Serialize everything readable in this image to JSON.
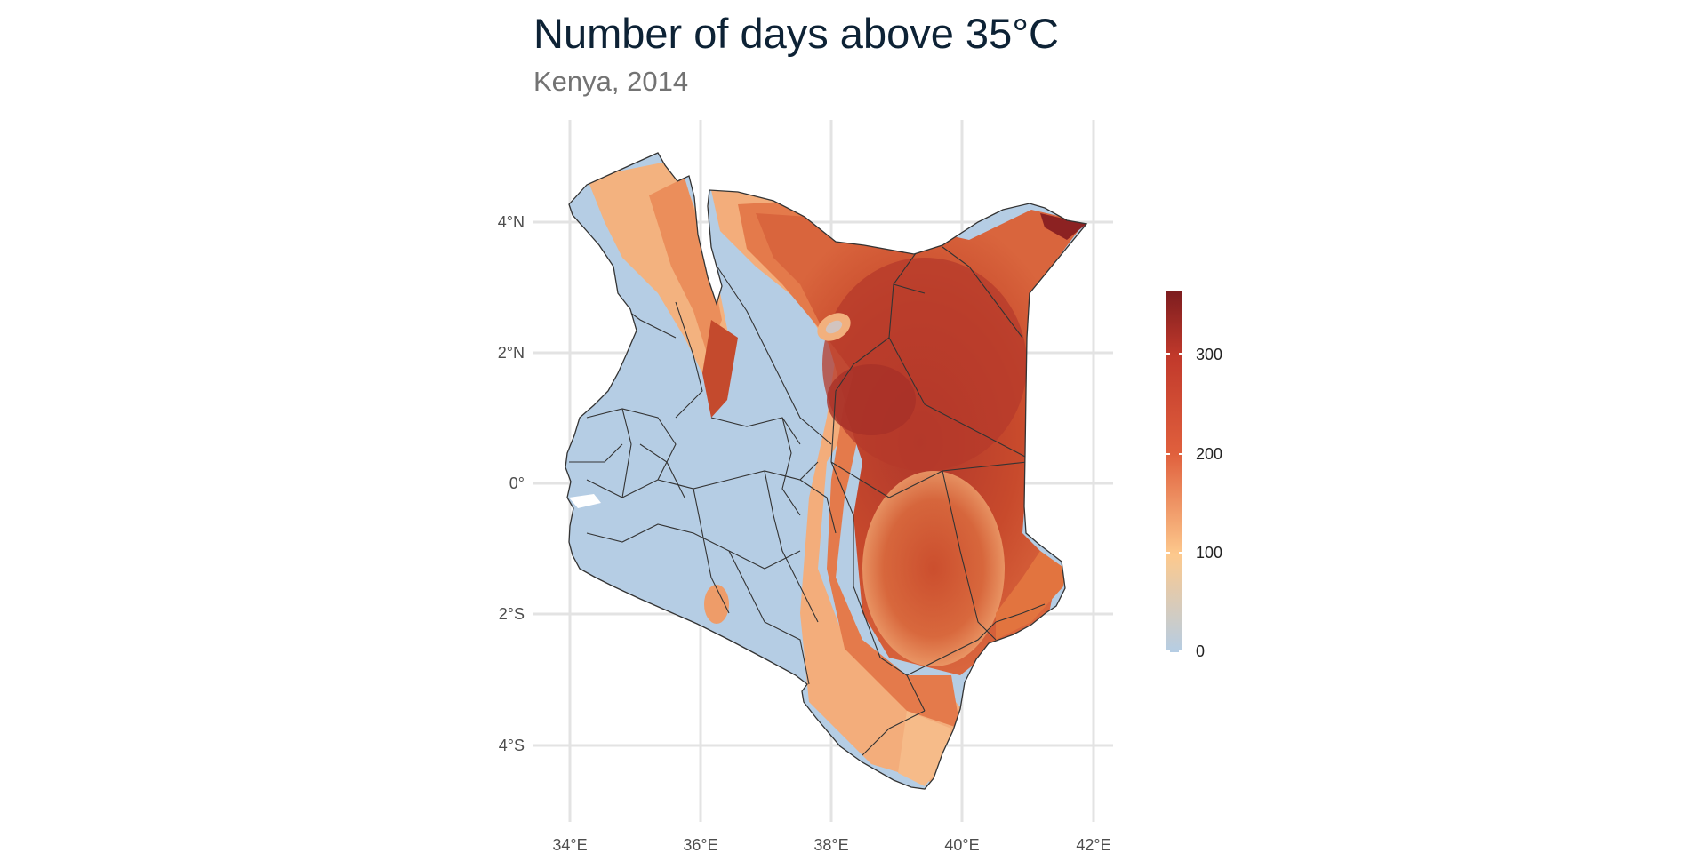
{
  "title": "Number of days above 35°C",
  "subtitle": "Kenya, 2014",
  "chart_data": {
    "type": "heatmap",
    "title": "Number of days above 35°C",
    "subtitle": "Kenya, 2014",
    "x_ticks": [
      "34°E",
      "36°E",
      "38°E",
      "40°E",
      "42°E"
    ],
    "y_ticks": [
      "4°N",
      "2°N",
      "0°",
      "2°S",
      "4°S"
    ],
    "xlim": [
      33.5,
      42.3
    ],
    "ylim": [
      -5.2,
      5.5
    ],
    "legend": {
      "ticks": [
        "0",
        "100",
        "200",
        "300"
      ],
      "range": [
        0,
        365
      ],
      "placement": "right",
      "colors": [
        "#b5cde4",
        "#fdc98d",
        "#e0603d",
        "#c1392b",
        "#7d1d1f"
      ]
    },
    "grid": true,
    "colors": {
      "cold": "#b5cde4",
      "mid": "#f3a06f",
      "hot": "#c84a2c",
      "hottest": "#8c2222",
      "boundary": "#333333",
      "gridline": "#e3e3e3"
    }
  }
}
